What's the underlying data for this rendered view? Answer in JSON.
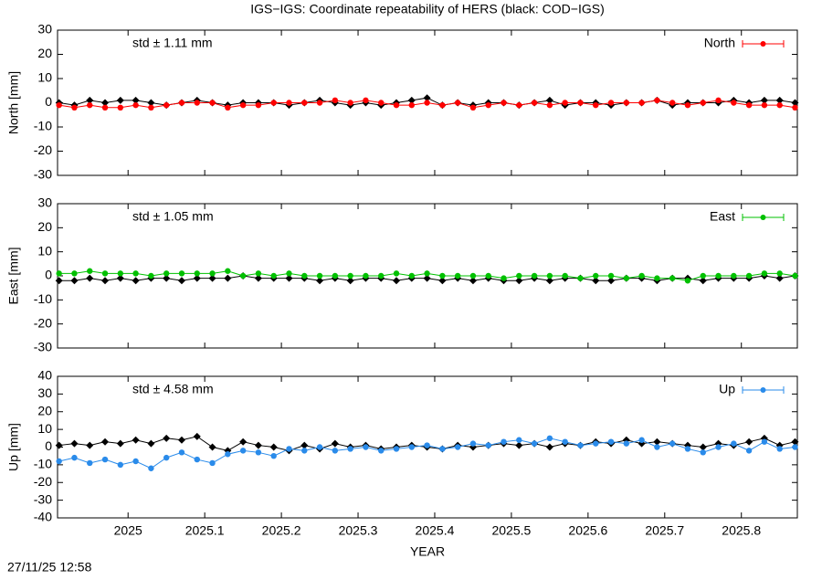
{
  "title": "IGS−IGS: Coordinate repeatability of HERS (black: COD−IGS)",
  "timestamp": "27/11/25 12:58",
  "chart_data": [
    {
      "type": "line",
      "ylabel": "North [mm]",
      "annotation": "std ± 1.11 mm",
      "legend": "upper right",
      "grid": false,
      "x": [
        2024.91,
        2024.93,
        2024.95,
        2024.97,
        2024.99,
        2025.01,
        2025.03,
        2025.05,
        2025.07,
        2025.09,
        2025.11,
        2025.13,
        2025.15,
        2025.17,
        2025.19,
        2025.21,
        2025.23,
        2025.25,
        2025.27,
        2025.29,
        2025.31,
        2025.33,
        2025.35,
        2025.37,
        2025.39,
        2025.41,
        2025.43,
        2025.45,
        2025.47,
        2025.49,
        2025.51,
        2025.53,
        2025.55,
        2025.57,
        2025.59,
        2025.61,
        2025.63,
        2025.65,
        2025.67,
        2025.69,
        2025.71,
        2025.73,
        2025.75,
        2025.77,
        2025.79,
        2025.81,
        2025.83,
        2025.85,
        2025.87
      ],
      "xlim": [
        2024.908,
        2025.873
      ],
      "xticks": [
        2025,
        2025.1,
        2025.2,
        2025.3,
        2025.4,
        2025.5,
        2025.6,
        2025.7,
        2025.8
      ],
      "ylim": [
        -30,
        30
      ],
      "yticks": [
        -30,
        -20,
        -10,
        0,
        10,
        20,
        30
      ],
      "series": [
        {
          "color": "#000000",
          "values": [
            0,
            -1,
            1,
            0,
            1,
            1,
            0,
            -1,
            0,
            1,
            0,
            -1,
            0,
            0,
            0,
            -1,
            0,
            1,
            0,
            -1,
            0,
            -1,
            0,
            1,
            2,
            -1,
            0,
            -1,
            0,
            0,
            -1,
            0,
            1,
            -1,
            0,
            0,
            -1,
            0,
            0,
            1,
            -1,
            0,
            0,
            0,
            1,
            0,
            1,
            1,
            0
          ]
        },
        {
          "name": "North",
          "color": "#ff0000",
          "values": [
            -1,
            -2,
            -1,
            -2,
            -2,
            -1,
            -2,
            -1,
            0,
            0,
            0,
            -2,
            -1,
            -1,
            0,
            0,
            0,
            0,
            1,
            0,
            1,
            0,
            -1,
            -1,
            0,
            -1,
            0,
            -2,
            -1,
            0,
            -1,
            0,
            -1,
            0,
            0,
            -1,
            0,
            0,
            0,
            1,
            0,
            -1,
            0,
            1,
            0,
            -1,
            -1,
            -1,
            -2
          ]
        }
      ]
    },
    {
      "type": "line",
      "ylabel": "East [mm]",
      "annotation": "std ± 1.05 mm",
      "legend": "upper right",
      "grid": false,
      "x": [
        2024.91,
        2024.93,
        2024.95,
        2024.97,
        2024.99,
        2025.01,
        2025.03,
        2025.05,
        2025.07,
        2025.09,
        2025.11,
        2025.13,
        2025.15,
        2025.17,
        2025.19,
        2025.21,
        2025.23,
        2025.25,
        2025.27,
        2025.29,
        2025.31,
        2025.33,
        2025.35,
        2025.37,
        2025.39,
        2025.41,
        2025.43,
        2025.45,
        2025.47,
        2025.49,
        2025.51,
        2025.53,
        2025.55,
        2025.57,
        2025.59,
        2025.61,
        2025.63,
        2025.65,
        2025.67,
        2025.69,
        2025.71,
        2025.73,
        2025.75,
        2025.77,
        2025.79,
        2025.81,
        2025.83,
        2025.85,
        2025.87
      ],
      "xlim": [
        2024.908,
        2025.873
      ],
      "xticks": [
        2025,
        2025.1,
        2025.2,
        2025.3,
        2025.4,
        2025.5,
        2025.6,
        2025.7,
        2025.8
      ],
      "ylim": [
        -30,
        30
      ],
      "yticks": [
        -30,
        -20,
        -10,
        0,
        10,
        20,
        30
      ],
      "series": [
        {
          "color": "#000000",
          "values": [
            -2,
            -2,
            -1,
            -2,
            -1,
            -2,
            -1,
            -1,
            -2,
            -1,
            -1,
            -1,
            0,
            -1,
            -1,
            -1,
            -1,
            -2,
            -1,
            -2,
            -1,
            -1,
            -2,
            -1,
            -1,
            -2,
            -1,
            -2,
            -1,
            -2,
            -2,
            -1,
            -2,
            -1,
            -1,
            -2,
            -2,
            -1,
            -1,
            -2,
            -1,
            -1,
            -2,
            -1,
            -1,
            -1,
            0,
            -1,
            0
          ]
        },
        {
          "name": "East",
          "color": "#00c000",
          "values": [
            1,
            1,
            2,
            1,
            1,
            1,
            0,
            1,
            1,
            1,
            1,
            2,
            0,
            1,
            0,
            1,
            0,
            0,
            0,
            0,
            0,
            0,
            1,
            0,
            1,
            0,
            0,
            0,
            0,
            -1,
            0,
            0,
            0,
            0,
            -1,
            0,
            0,
            -1,
            0,
            -1,
            -1,
            -2,
            0,
            0,
            0,
            0,
            1,
            1,
            0
          ]
        }
      ]
    },
    {
      "type": "line",
      "ylabel": "Up [mm]",
      "annotation": "std ± 4.58 mm",
      "legend": "upper right",
      "grid": false,
      "xlabel": "YEAR",
      "x": [
        2024.91,
        2024.93,
        2024.95,
        2024.97,
        2024.99,
        2025.01,
        2025.03,
        2025.05,
        2025.07,
        2025.09,
        2025.11,
        2025.13,
        2025.15,
        2025.17,
        2025.19,
        2025.21,
        2025.23,
        2025.25,
        2025.27,
        2025.29,
        2025.31,
        2025.33,
        2025.35,
        2025.37,
        2025.39,
        2025.41,
        2025.43,
        2025.45,
        2025.47,
        2025.49,
        2025.51,
        2025.53,
        2025.55,
        2025.57,
        2025.59,
        2025.61,
        2025.63,
        2025.65,
        2025.67,
        2025.69,
        2025.71,
        2025.73,
        2025.75,
        2025.77,
        2025.79,
        2025.81,
        2025.83,
        2025.85,
        2025.87
      ],
      "xlim": [
        2024.908,
        2025.873
      ],
      "xticks": [
        2025,
        2025.1,
        2025.2,
        2025.3,
        2025.4,
        2025.5,
        2025.6,
        2025.7,
        2025.8
      ],
      "ylim": [
        -40,
        40
      ],
      "yticks": [
        -40,
        -30,
        -20,
        -10,
        0,
        10,
        20,
        30,
        40
      ],
      "series": [
        {
          "color": "#000000",
          "values": [
            1,
            2,
            1,
            3,
            2,
            4,
            2,
            5,
            4,
            6,
            0,
            -2,
            3,
            1,
            0,
            -2,
            1,
            -1,
            2,
            0,
            1,
            -1,
            0,
            1,
            0,
            -1,
            1,
            0,
            1,
            2,
            1,
            2,
            0,
            2,
            1,
            3,
            2,
            4,
            2,
            3,
            2,
            1,
            0,
            2,
            1,
            3,
            5,
            1,
            3
          ]
        },
        {
          "name": "Up",
          "color": "#2a8bea",
          "values": [
            -8,
            -6,
            -9,
            -7,
            -10,
            -8,
            -12,
            -6,
            -3,
            -7,
            -9,
            -4,
            -2,
            -3,
            -5,
            -1,
            -2,
            0,
            -2,
            -1,
            0,
            -2,
            -1,
            0,
            1,
            -1,
            0,
            2,
            1,
            3,
            4,
            2,
            5,
            3,
            1,
            2,
            3,
            2,
            4,
            0,
            2,
            -1,
            -3,
            0,
            2,
            -2,
            3,
            -1,
            0
          ]
        }
      ]
    }
  ]
}
